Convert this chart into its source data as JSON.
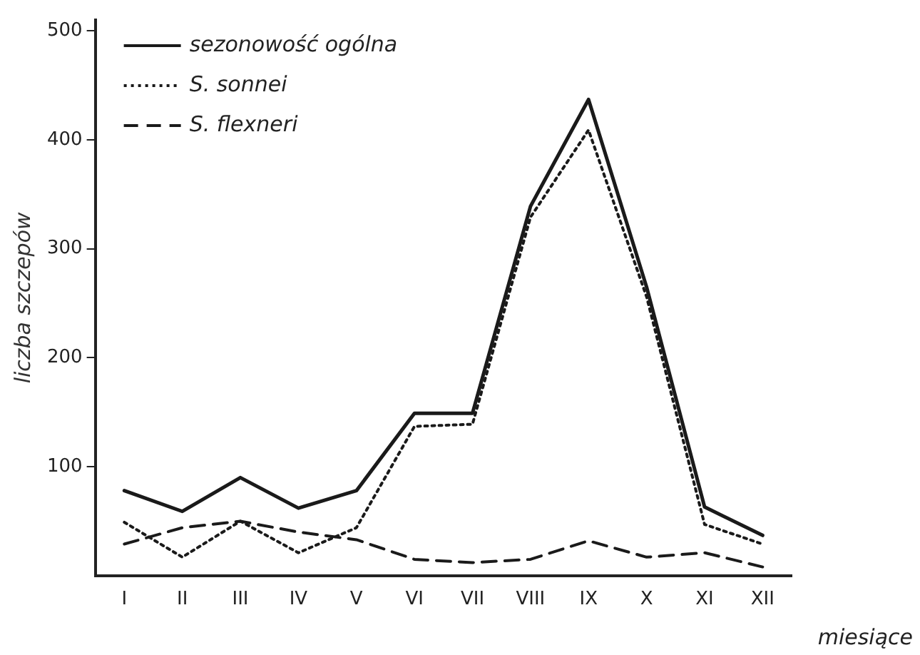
{
  "chart_data": {
    "type": "line",
    "xlabel": "miesiące",
    "ylabel": "liczba szczepów",
    "categories": [
      "I",
      "II",
      "III",
      "IV",
      "V",
      "VI",
      "VII",
      "VIII",
      "IX",
      "X",
      "XI",
      "XII"
    ],
    "series": [
      {
        "name": "sezonowość ogólna",
        "color": "#1a1a1a",
        "line_style": "solid",
        "values": [
          78,
          59,
          90,
          62,
          78,
          149,
          149,
          339,
          437,
          265,
          63,
          37
        ]
      },
      {
        "name": "S. sonnei",
        "color": "#1a1a1a",
        "line_style": "dotted",
        "values": [
          49,
          17,
          50,
          21,
          44,
          137,
          139,
          329,
          409,
          256,
          47,
          29
        ]
      },
      {
        "name": "S. flexneri",
        "color": "#1a1a1a",
        "line_style": "dashed",
        "values": [
          29,
          44,
          50,
          40,
          33,
          15,
          12,
          15,
          32,
          17,
          21,
          8
        ]
      }
    ],
    "ylim": [
      0,
      510
    ],
    "yticks": [
      100,
      200,
      300,
      400,
      500
    ],
    "grid": false,
    "legend": "top left",
    "marker": "none"
  }
}
